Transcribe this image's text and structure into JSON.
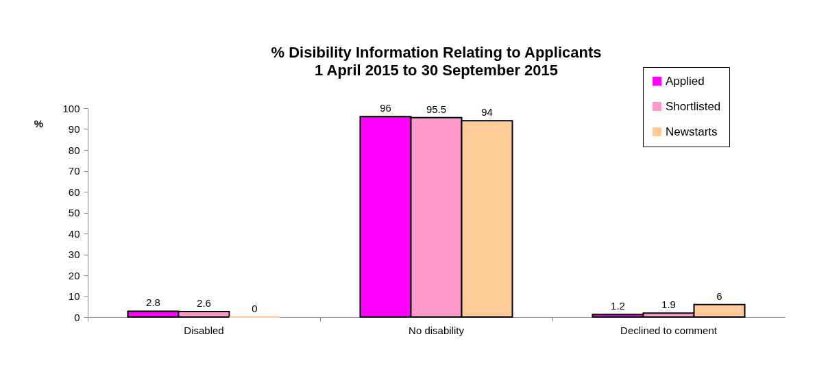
{
  "chart_data": {
    "type": "bar",
    "title": "% Disibility Information Relating to Applicants",
    "subtitle": "1 April 2015 to 30 September 2015",
    "ylabel": "%",
    "categories": [
      "Disabled",
      "No disability",
      "Declined to comment"
    ],
    "series": [
      {
        "name": "Applied",
        "color": "#ff00ff",
        "values": [
          2.8,
          96,
          1.2
        ]
      },
      {
        "name": "Shortlisted",
        "color": "#ff99cc",
        "values": [
          2.6,
          95.5,
          1.9
        ]
      },
      {
        "name": "Newstarts",
        "color": "#ffcc99",
        "values": [
          0,
          94,
          6
        ]
      }
    ],
    "ylim": [
      0,
      100
    ],
    "yticks": [
      0,
      10,
      20,
      30,
      40,
      50,
      60,
      70,
      80,
      90,
      100
    ],
    "data_labels": true,
    "legend": "top right",
    "grid": false
  }
}
